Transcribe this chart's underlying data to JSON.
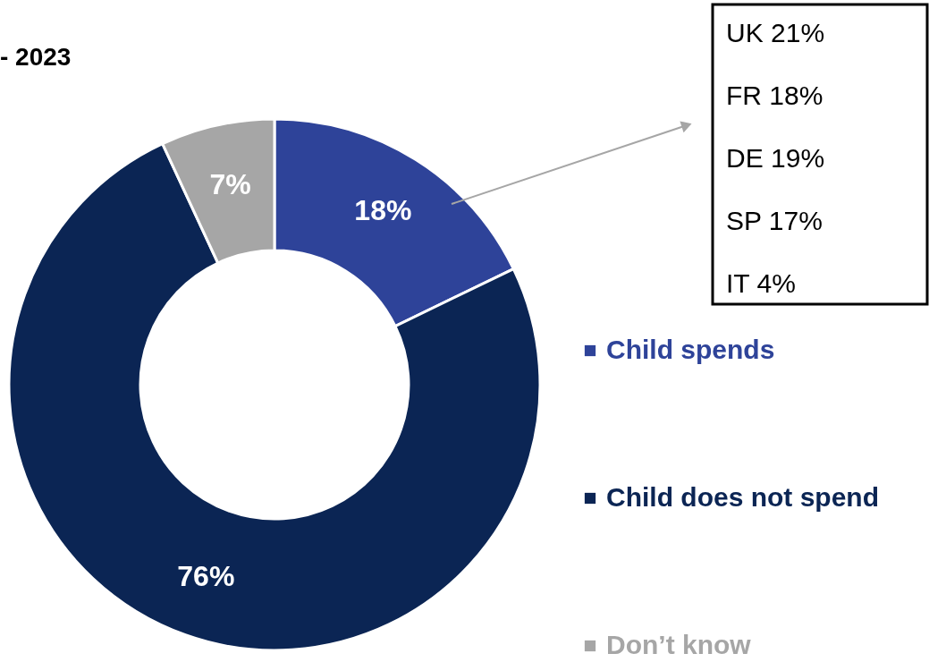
{
  "chart_data": {
    "type": "donut",
    "title": "- 2023",
    "categories": [
      "Child spends",
      "Child does not spend",
      "Don’t know"
    ],
    "values": [
      18,
      76,
      7
    ],
    "colors": [
      "#2e4399",
      "#0b2554",
      "#a6a6a6"
    ],
    "value_labels": [
      "18%",
      "76%",
      "7%"
    ],
    "legend": "right",
    "annotations": [
      "UK 21%",
      "FR 18%",
      "DE 19%",
      "SP 17%",
      "IT 4%"
    ]
  }
}
